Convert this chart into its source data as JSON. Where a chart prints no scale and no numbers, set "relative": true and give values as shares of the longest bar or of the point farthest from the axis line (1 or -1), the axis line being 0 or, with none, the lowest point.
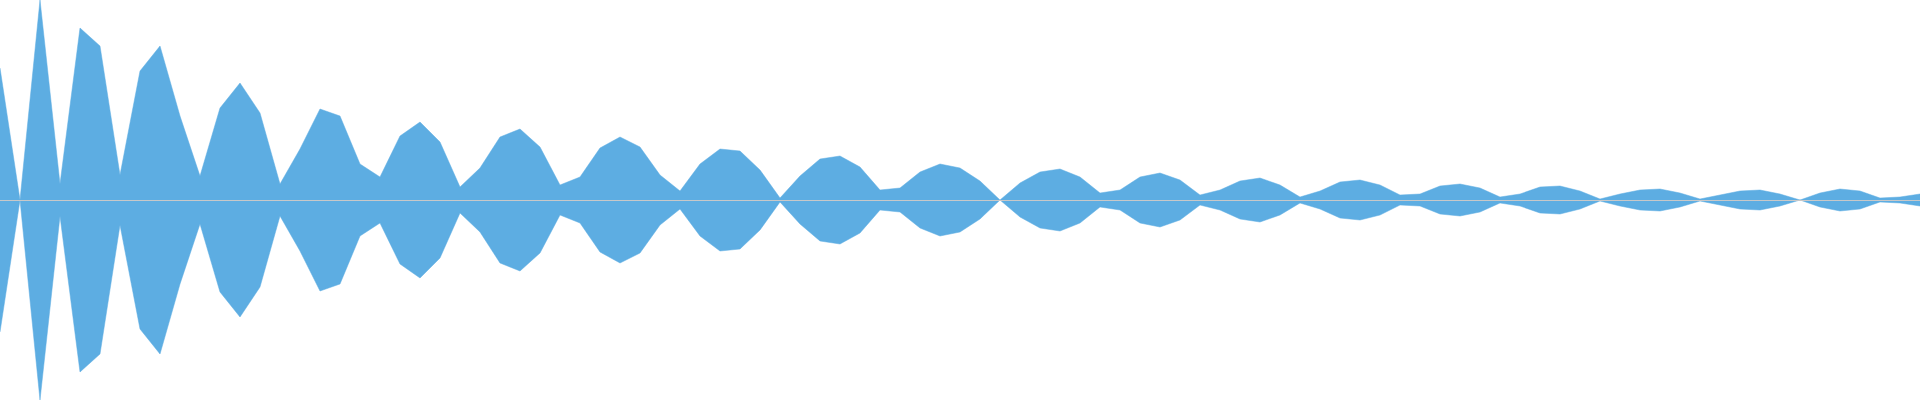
{
  "chart_data": {
    "type": "area",
    "relative": true,
    "grid": false,
    "legend": false,
    "tick_labels": false,
    "categories": [
      null,
      null,
      null,
      null,
      null,
      null,
      null,
      null,
      null,
      null,
      null,
      null,
      null,
      null,
      null,
      null,
      null,
      null,
      null,
      null,
      null,
      null,
      null,
      null,
      null,
      null,
      null,
      null,
      null,
      null,
      null,
      null,
      null,
      null,
      null,
      null,
      null,
      null,
      null,
      null,
      null,
      null,
      null,
      null,
      null,
      null,
      null,
      null,
      null,
      null,
      null,
      null,
      null,
      null,
      null,
      null,
      null,
      null,
      null,
      null,
      null,
      null,
      null,
      null,
      null,
      null,
      null,
      null,
      null,
      null,
      null,
      null,
      null,
      null,
      null,
      null,
      null,
      null,
      null,
      null,
      null,
      null,
      null,
      null,
      null,
      null,
      null,
      null,
      null,
      null,
      null,
      null,
      null,
      null,
      null,
      null,
      null
    ],
    "series": [
      {
        "color": "#5dade2",
        "values": [
          0.66,
          0,
          1.0,
          0.08,
          0.86,
          0.77,
          0.125,
          0.645,
          0.77,
          0.42,
          0.12,
          0.46,
          0.585,
          0.435,
          0.08,
          0.255,
          0.455,
          0.42,
          0.18,
          0.115,
          0.32,
          0.39,
          0.29,
          0.065,
          0.16,
          0.315,
          0.355,
          0.265,
          0.075,
          0.115,
          0.26,
          0.315,
          0.265,
          0.125,
          0.045,
          0.18,
          0.255,
          0.245,
          0.15,
          0.01,
          0.12,
          0.205,
          0.22,
          0.165,
          0.05,
          0.06,
          0.14,
          0.18,
          0.16,
          0.095,
          0,
          0.085,
          0.14,
          0.155,
          0.115,
          0.035,
          0.05,
          0.115,
          0.135,
          0.1,
          0.025,
          0.05,
          0.095,
          0.11,
          0.075,
          0.015,
          0.045,
          0.09,
          0.1,
          0.075,
          0.025,
          0.03,
          0.07,
          0.08,
          0.06,
          0.015,
          0.03,
          0.065,
          0.07,
          0.045,
          0.005,
          0.03,
          0.05,
          0.055,
          0.035,
          0.005,
          0.025,
          0.045,
          0.05,
          0.03,
          0,
          0.035,
          0.055,
          0.045,
          0.01,
          0.015,
          0.03
        ]
      },
      {
        "color": "#5dade2",
        "values": [
          -0.66,
          0,
          -1.0,
          -0.08,
          -0.86,
          -0.77,
          -0.125,
          -0.645,
          -0.77,
          -0.42,
          -0.12,
          -0.46,
          -0.585,
          -0.435,
          -0.08,
          -0.255,
          -0.455,
          -0.42,
          -0.18,
          -0.115,
          -0.32,
          -0.39,
          -0.29,
          -0.065,
          -0.16,
          -0.315,
          -0.355,
          -0.265,
          -0.075,
          -0.115,
          -0.26,
          -0.315,
          -0.265,
          -0.125,
          -0.045,
          -0.18,
          -0.255,
          -0.245,
          -0.15,
          -0.01,
          -0.12,
          -0.205,
          -0.22,
          -0.165,
          -0.05,
          -0.06,
          -0.14,
          -0.18,
          -0.16,
          -0.095,
          0,
          -0.085,
          -0.14,
          -0.155,
          -0.115,
          -0.035,
          -0.05,
          -0.115,
          -0.135,
          -0.1,
          -0.025,
          -0.05,
          -0.095,
          -0.11,
          -0.075,
          -0.015,
          -0.045,
          -0.09,
          -0.1,
          -0.075,
          -0.025,
          -0.03,
          -0.07,
          -0.08,
          -0.06,
          -0.015,
          -0.03,
          -0.065,
          -0.07,
          -0.045,
          -0.005,
          -0.03,
          -0.05,
          -0.055,
          -0.035,
          -0.005,
          -0.025,
          -0.045,
          -0.05,
          -0.03,
          0,
          -0.035,
          -0.055,
          -0.045,
          -0.01,
          -0.015,
          -0.03
        ]
      }
    ]
  }
}
